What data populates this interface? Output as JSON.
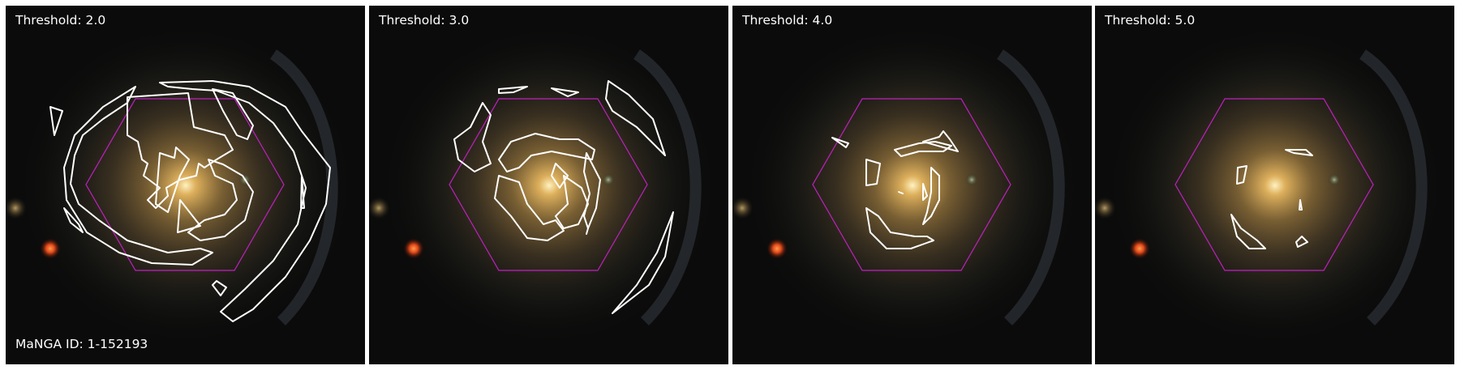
{
  "panels": [
    {
      "label": "Threshold: 2.0"
    },
    {
      "label": "Threshold: 3.0"
    },
    {
      "label": "Threshold: 4.0"
    },
    {
      "label": "Threshold: 5.0"
    }
  ],
  "manga_id": "MaNGA ID: 1-152193",
  "colors": {
    "hexagon": "#c020c0",
    "contour": "#ffffff",
    "galaxy_core": "#ffe8a8",
    "red_star": "#ff5a20"
  }
}
